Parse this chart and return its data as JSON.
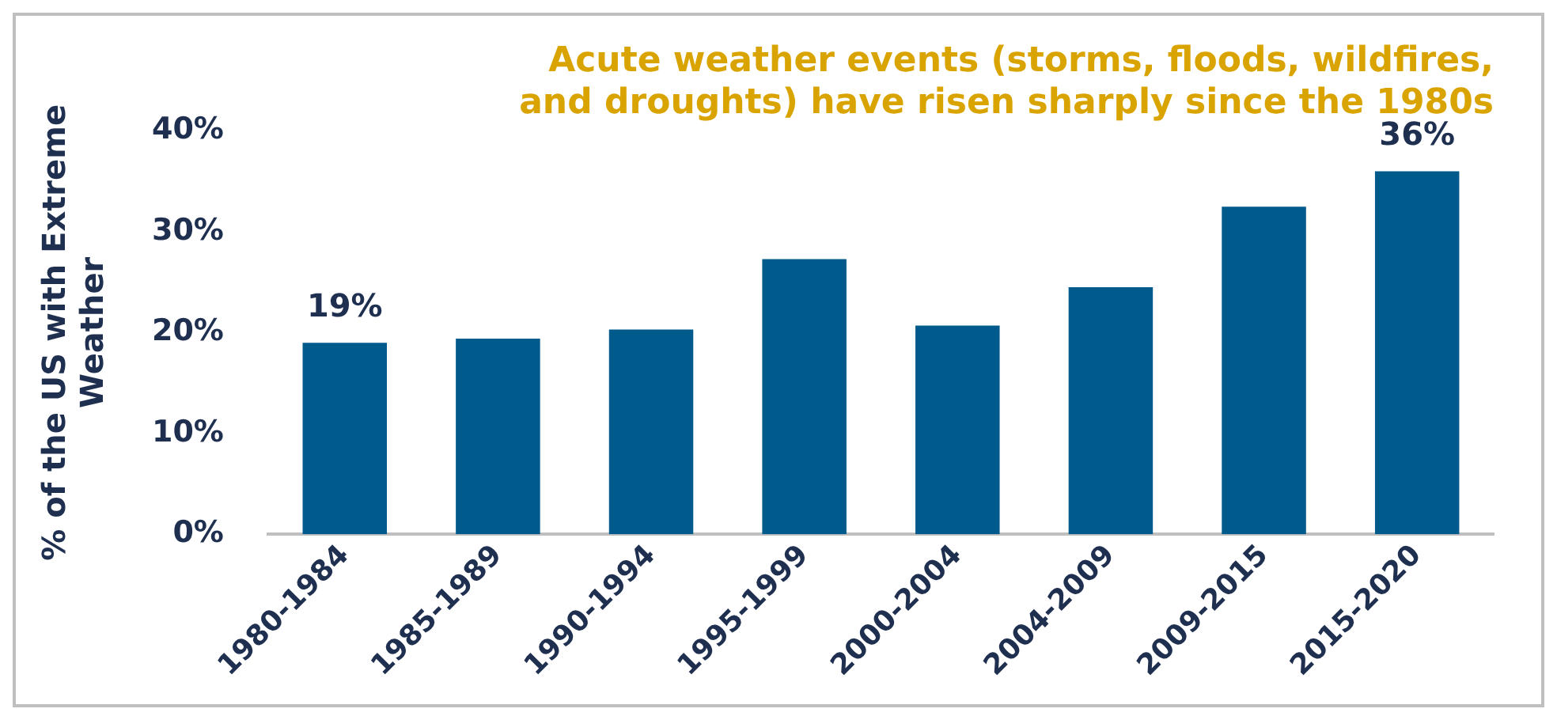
{
  "chart_data": {
    "type": "bar",
    "title": "Acute weather events (storms, floods, wildfires, and droughts) have risen sharply since the 1980s",
    "ylabel": "% of the US with Extreme Weather",
    "categories": [
      "1980-1984",
      "1985-1989",
      "1990-1994",
      "1995-1999",
      "2000-2004",
      "2004-2009",
      "2009-2015",
      "2015-2020"
    ],
    "values": [
      19,
      19.4,
      20.3,
      27.3,
      20.7,
      24.5,
      32.5,
      36
    ],
    "value_labels": [
      "19%",
      null,
      null,
      null,
      null,
      null,
      null,
      "36%"
    ],
    "color": "#005a8c",
    "ylim": [
      0,
      40
    ],
    "yticks": [
      {
        "value": 0,
        "label": "0%"
      },
      {
        "value": 10,
        "label": "10%"
      },
      {
        "value": 20,
        "label": "20%"
      },
      {
        "value": 30,
        "label": "30%"
      },
      {
        "value": 40,
        "label": "40%"
      }
    ],
    "grid": false,
    "legend": false
  }
}
